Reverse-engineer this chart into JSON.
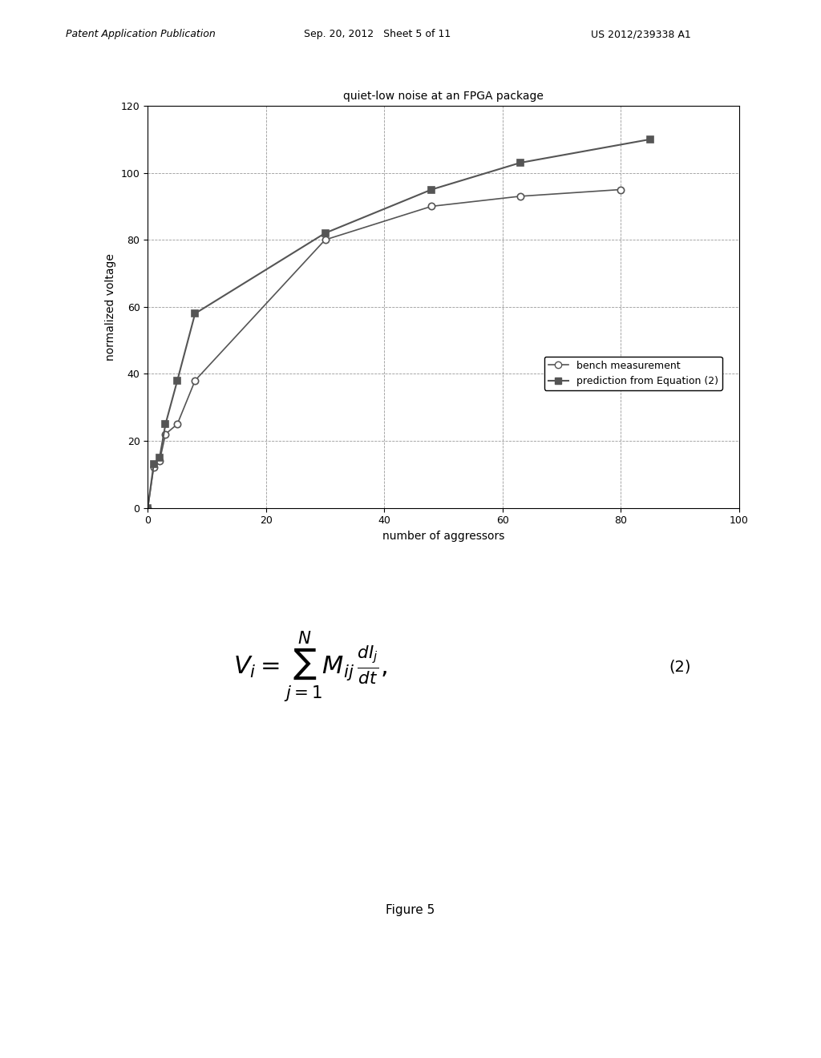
{
  "title": "quiet-low noise at an FPGA package",
  "xlabel": "number of aggressors",
  "ylabel": "normalized voltage",
  "xlim": [
    0,
    100
  ],
  "ylim": [
    0,
    120
  ],
  "xticks": [
    0,
    20,
    40,
    60,
    80,
    100
  ],
  "yticks": [
    0,
    20,
    40,
    60,
    80,
    100,
    120
  ],
  "bench_x": [
    0,
    1,
    2,
    3,
    5,
    8,
    30,
    48,
    63,
    80
  ],
  "bench_y": [
    0,
    12,
    14,
    22,
    25,
    38,
    80,
    90,
    93,
    95
  ],
  "pred_x": [
    0,
    1,
    2,
    3,
    5,
    8,
    30,
    48,
    63,
    85
  ],
  "pred_y": [
    0,
    13,
    15,
    25,
    38,
    58,
    82,
    95,
    103,
    110
  ],
  "bench_label": "bench measurement",
  "pred_label": "prediction from Equation (2)",
  "line_color": "#555555",
  "bg_color": "#ffffff",
  "figure_caption": "Figure 5",
  "header_left": "Patent Application Publication",
  "header_mid": "Sep. 20, 2012   Sheet 5 of 11",
  "header_right": "US 2012/239338 A1",
  "equation_label": "(2)"
}
